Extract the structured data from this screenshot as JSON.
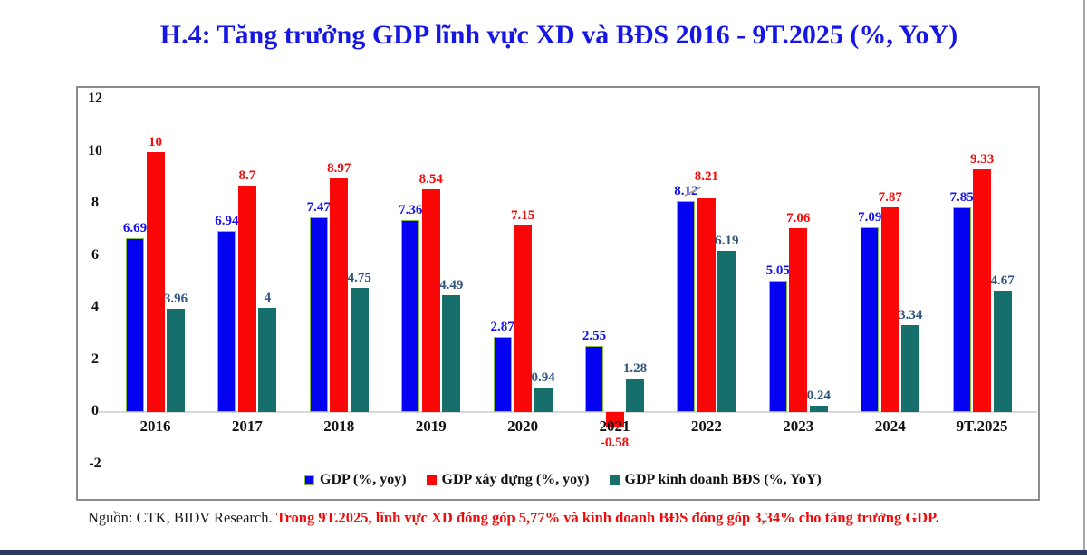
{
  "page": {
    "title": "H.4: Tăng trưởng GDP lĩnh vực XD và BĐS 2016 - 9T.2025 (%, YoY)",
    "title_color": "#1717E3",
    "footer": {
      "source_text": "Nguồn: CTK, BIDV Research.",
      "highlight_text": "Trong 9T.2025, lĩnh vực XD đóng góp 5,77% và kinh doanh BĐS đóng góp 3,34% cho tăng trưởng GDP.",
      "highlight_color": "#EE0B0B"
    },
    "bottom_bar_color": "#2A3A61"
  },
  "chart_data": {
    "type": "bar",
    "title": "H.4: Tăng trưởng GDP lĩnh vực XD và BĐS 2016 - 9T.2025 (%, YoY)",
    "categories": [
      "2016",
      "2017",
      "2018",
      "2019",
      "2020",
      "2021",
      "2022",
      "2023",
      "2024",
      "9T.2025"
    ],
    "series": [
      {
        "key": "gdp",
        "name": "GDP (%, yoy)",
        "color": "#0303F2",
        "border_color": "#8CC342",
        "label_color": "#1512EC",
        "values": [
          6.69,
          6.94,
          7.47,
          7.36,
          2.87,
          2.55,
          8.12,
          5.05,
          7.09,
          7.85
        ]
      },
      {
        "key": "xd",
        "name": "GDP xây dựng (%, yoy)",
        "color": "#FA0707",
        "label_color": "#F50A0A",
        "values": [
          10,
          8.7,
          8.97,
          8.54,
          7.15,
          -0.58,
          8.21,
          7.06,
          7.87,
          9.33
        ]
      },
      {
        "key": "bds",
        "name": "GDP kinh doanh BĐS (%, YoY)",
        "color": "#166F6B",
        "label_color": "#2E567E",
        "values": [
          3.96,
          4,
          4.75,
          4.49,
          0.94,
          1.28,
          6.19,
          0.24,
          3.34,
          4.67
        ]
      }
    ],
    "ylim": [
      -2,
      12
    ],
    "yticks": [
      12,
      10,
      8,
      6,
      4,
      2,
      0,
      -2
    ],
    "grid": false,
    "legend_position": "bottom",
    "label_callout": {
      "category": "2022",
      "series": "GDP xây dựng (%, yoy)"
    },
    "axis_colors": {
      "zero_line": "#d9d9d9",
      "tick_text": "#111111"
    }
  }
}
